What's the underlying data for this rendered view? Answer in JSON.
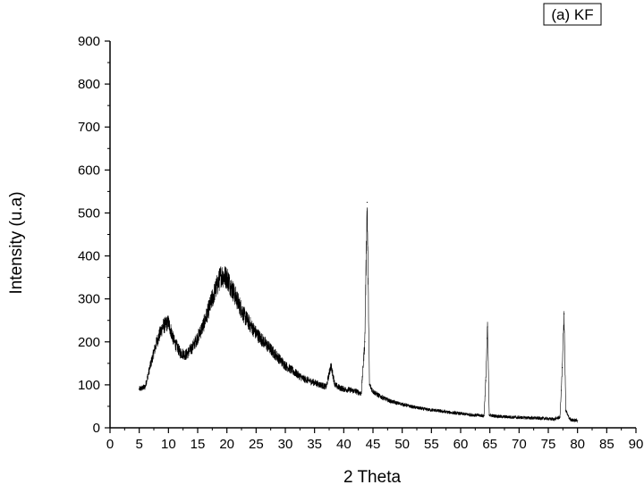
{
  "chart_data": {
    "type": "line",
    "title": "",
    "xlabel": "2 Theta",
    "ylabel": "Intensity (u.a)",
    "xlim": [
      0,
      90
    ],
    "ylim": [
      0,
      900
    ],
    "x_ticks": [
      0,
      5,
      10,
      15,
      20,
      25,
      30,
      35,
      40,
      45,
      50,
      55,
      60,
      65,
      70,
      75,
      80,
      85,
      90
    ],
    "y_ticks": [
      0,
      100,
      200,
      300,
      400,
      500,
      600,
      700,
      800,
      900
    ],
    "grid": false,
    "legend_position": "top-right",
    "series": [
      {
        "name": "(a) KF",
        "color": "#000000",
        "x": [
          5,
          6,
          7,
          8,
          9,
          10,
          11,
          12,
          13,
          14,
          15,
          16,
          17,
          18,
          19,
          20,
          21,
          22,
          23,
          24,
          25,
          26,
          27,
          28,
          29,
          30,
          31,
          32,
          33,
          34,
          35,
          36,
          37,
          37.8,
          38.5,
          39,
          40,
          41,
          42,
          43,
          43.6,
          44.0,
          44.4,
          45,
          46,
          47,
          48,
          49,
          50,
          52,
          54,
          56,
          58,
          60,
          62,
          64,
          64.3,
          64.6,
          64.9,
          65.5,
          67,
          70,
          72,
          74,
          76,
          77,
          77.4,
          77.7,
          78.0,
          78.6,
          79,
          80
        ],
        "y": [
          90,
          95,
          150,
          200,
          235,
          245,
          200,
          175,
          170,
          185,
          210,
          240,
          280,
          320,
          355,
          350,
          320,
          290,
          260,
          240,
          220,
          205,
          190,
          175,
          160,
          145,
          135,
          125,
          115,
          110,
          105,
          100,
          95,
          145,
          100,
          95,
          90,
          88,
          85,
          80,
          200,
          525,
          100,
          85,
          75,
          68,
          62,
          58,
          55,
          48,
          43,
          40,
          36,
          33,
          30,
          28,
          110,
          235,
          30,
          28,
          26,
          24,
          23,
          22,
          20,
          25,
          140,
          265,
          40,
          22,
          18,
          17
        ]
      }
    ]
  }
}
